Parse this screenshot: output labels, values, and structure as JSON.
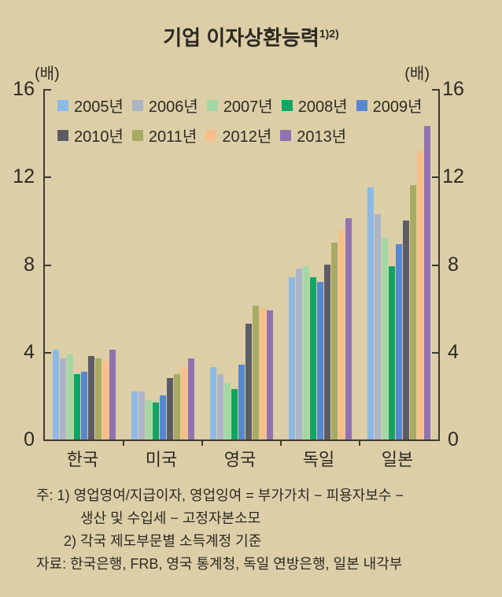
{
  "title": {
    "text": "기업 이자상환능력",
    "superscript": "1)2)"
  },
  "axis_unit_label": "(배)",
  "chart_data": {
    "type": "bar",
    "title": "기업 이자상환능력",
    "unit": "배",
    "categories": [
      "한국",
      "미국",
      "영국",
      "독일",
      "일본"
    ],
    "series": [
      {
        "name": "2005년",
        "color": "#8CBAE5",
        "values": [
          4.1,
          2.2,
          3.3,
          7.4,
          11.5
        ]
      },
      {
        "name": "2006년",
        "color": "#ACB5C8",
        "values": [
          3.7,
          2.2,
          3.0,
          7.8,
          10.3
        ]
      },
      {
        "name": "2007년",
        "color": "#A3D8A5",
        "values": [
          3.9,
          1.8,
          2.6,
          7.9,
          9.2
        ]
      },
      {
        "name": "2008년",
        "color": "#0FA562",
        "values": [
          3.0,
          1.7,
          2.3,
          7.4,
          7.9
        ]
      },
      {
        "name": "2009년",
        "color": "#5787D0",
        "values": [
          3.1,
          2.0,
          3.4,
          7.2,
          8.9
        ]
      },
      {
        "name": "2010년",
        "color": "#5D5C65",
        "values": [
          3.8,
          2.8,
          5.3,
          8.0,
          10.0
        ]
      },
      {
        "name": "2011년",
        "color": "#A7AB63",
        "values": [
          3.7,
          3.0,
          6.1,
          9.0,
          11.6
        ]
      },
      {
        "name": "2012년",
        "color": "#F7BF87",
        "values": [
          3.6,
          3.3,
          6.0,
          9.6,
          13.2
        ]
      },
      {
        "name": "2013년",
        "color": "#9272B0",
        "values": [
          4.1,
          3.7,
          5.9,
          10.1,
          14.3
        ]
      }
    ],
    "ylim": [
      0,
      16
    ],
    "yticks": [
      0,
      4,
      8,
      12,
      16
    ],
    "legend_position": "top-left-inside",
    "legend_rows": [
      5,
      4
    ],
    "grid": false
  },
  "footnotes": {
    "lines": [
      {
        "indent": 0,
        "text": "주: 1) 영업영여/지급이자, 영업잉여 = 부가가치 − 피용자보수 −"
      },
      {
        "indent": 2,
        "text": "생산 및 수입세 − 고정자본소모"
      },
      {
        "indent": 1,
        "text": "2) 각국 제도부문별 소득계정 기준"
      },
      {
        "indent": 0,
        "text": "자료: 한국은행, FRB, 영국 통계청, 독일 연방은행, 일본 내각부"
      }
    ]
  },
  "colors": {
    "background": "#DCCFA8",
    "text": "#2D2922",
    "axis": "#3F3A30"
  }
}
